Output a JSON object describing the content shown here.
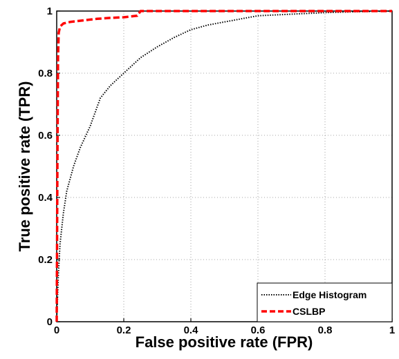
{
  "chart_data": {
    "type": "line",
    "xlabel": "False positive rate (FPR)",
    "ylabel": "True positive rate (TPR)",
    "xlim": [
      0,
      1
    ],
    "ylim": [
      0,
      1
    ],
    "x_ticks": [
      "0",
      "0.2",
      "0.4",
      "0.6",
      "0.8",
      "1"
    ],
    "y_ticks": [
      "0",
      "0.2",
      "0.4",
      "0.6",
      "0.8",
      "1"
    ],
    "grid": true,
    "legend_position": "bottom-right",
    "series": [
      {
        "name": "Edge Histogram",
        "color": "#000000",
        "style": "dotted",
        "x": [
          0,
          0.005,
          0.01,
          0.02,
          0.03,
          0.05,
          0.07,
          0.1,
          0.13,
          0.16,
          0.2,
          0.25,
          0.3,
          0.35,
          0.4,
          0.45,
          0.5,
          0.55,
          0.6,
          0.7,
          0.8,
          0.9,
          1.0
        ],
        "y": [
          0,
          0.15,
          0.25,
          0.35,
          0.42,
          0.5,
          0.56,
          0.63,
          0.72,
          0.76,
          0.8,
          0.85,
          0.885,
          0.915,
          0.94,
          0.955,
          0.965,
          0.975,
          0.985,
          0.99,
          0.995,
          0.998,
          1.0
        ]
      },
      {
        "name": "CSLBP",
        "color": "#ff0000",
        "style": "dashed",
        "x": [
          0,
          0.002,
          0.004,
          0.006,
          0.01,
          0.02,
          0.04,
          0.08,
          0.12,
          0.16,
          0.2,
          0.24,
          0.25,
          0.3,
          0.5,
          0.7,
          1.0
        ],
        "y": [
          0,
          0.5,
          0.85,
          0.93,
          0.95,
          0.96,
          0.965,
          0.97,
          0.975,
          0.978,
          0.98,
          0.985,
          1.0,
          1.0,
          1.0,
          1.0,
          1.0
        ]
      }
    ]
  }
}
